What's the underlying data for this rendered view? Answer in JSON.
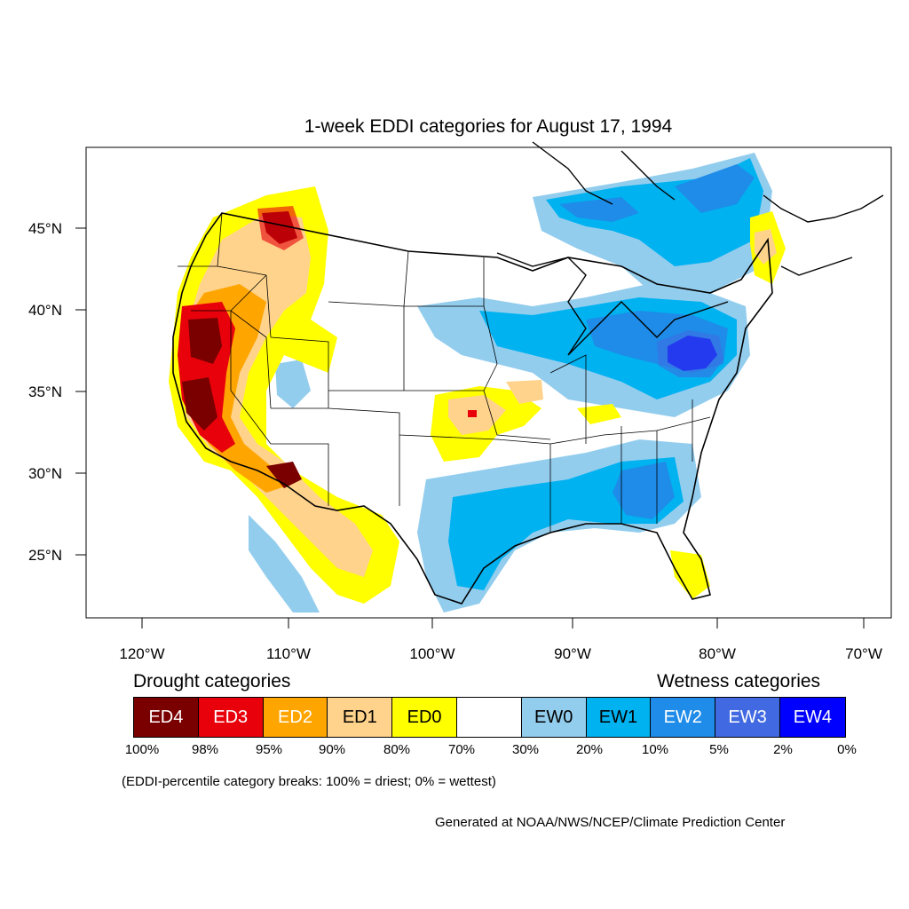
{
  "title": "1-week EDDI categories for August 17, 1994",
  "axes": {
    "lat_labels": [
      "45°N",
      "40°N",
      "35°N",
      "30°N",
      "25°N"
    ],
    "lon_labels": [
      "120°W",
      "110°W",
      "100°W",
      "90°W",
      "80°W",
      "70°W"
    ]
  },
  "legend": {
    "drought_heading": "Drought categories",
    "wetness_heading": "Wetness categories",
    "categories": [
      {
        "label": "ED4",
        "color": "#7a0000",
        "text_color": "#ffffff"
      },
      {
        "label": "ED3",
        "color": "#e8000b",
        "text_color": "#ffffff"
      },
      {
        "label": "ED2",
        "color": "#ffa500",
        "text_color": "#ffffff"
      },
      {
        "label": "ED1",
        "color": "#ffd38b",
        "text_color": "#000000"
      },
      {
        "label": "ED0",
        "color": "#ffff00",
        "text_color": "#000000"
      },
      {
        "label": "",
        "color": "#ffffff",
        "text_color": "#000000"
      },
      {
        "label": "EW0",
        "color": "#93cdee",
        "text_color": "#000000"
      },
      {
        "label": "EW1",
        "color": "#00b2f0",
        "text_color": "#000000"
      },
      {
        "label": "EW2",
        "color": "#1e8ce8",
        "text_color": "#ffffff"
      },
      {
        "label": "EW3",
        "color": "#4169e1",
        "text_color": "#ffffff"
      },
      {
        "label": "EW4",
        "color": "#0000ff",
        "text_color": "#ffffff"
      }
    ],
    "percent_breaks": [
      "100%",
      "98%",
      "95%",
      "90%",
      "80%",
      "70%",
      "30%",
      "20%",
      "10%",
      "5%",
      "2%",
      "0%"
    ]
  },
  "note": "(EDDI-percentile category breaks: 100% = driest; 0% = wettest)",
  "credit": "Generated at NOAA/NWS/NCEP/Climate Prediction Center"
}
